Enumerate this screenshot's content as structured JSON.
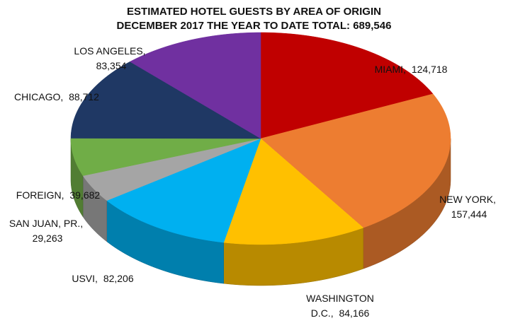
{
  "chart_data": {
    "type": "pie3d",
    "title": "ESTIMATED HOTEL GUESTS BY AREA OF ORIGIN",
    "subtitle": "DECEMBER 2017 THE YEAR TO DATE TOTAL: 689,546",
    "categories": [
      "MIAMI,",
      "NEW YORK,",
      "WASHINGTON D.C.,",
      "USVI,",
      "SAN JUAN, PR.,",
      "FOREIGN,",
      "CHICAGO,",
      "LOS ANGELES,"
    ],
    "values": [
      124718,
      157444,
      84166,
      82206,
      29263,
      39682,
      88712,
      83354
    ],
    "value_labels": [
      "124,718",
      "157,444",
      "84,166",
      "82,206",
      "29,263",
      "39,682",
      "88,712",
      "83,354"
    ],
    "colors": [
      "#c00000",
      "#ed7d31",
      "#ffc000",
      "#00b0f0",
      "#a5a5a5",
      "#70ad47",
      "#1f3864",
      "#7030a0"
    ]
  }
}
